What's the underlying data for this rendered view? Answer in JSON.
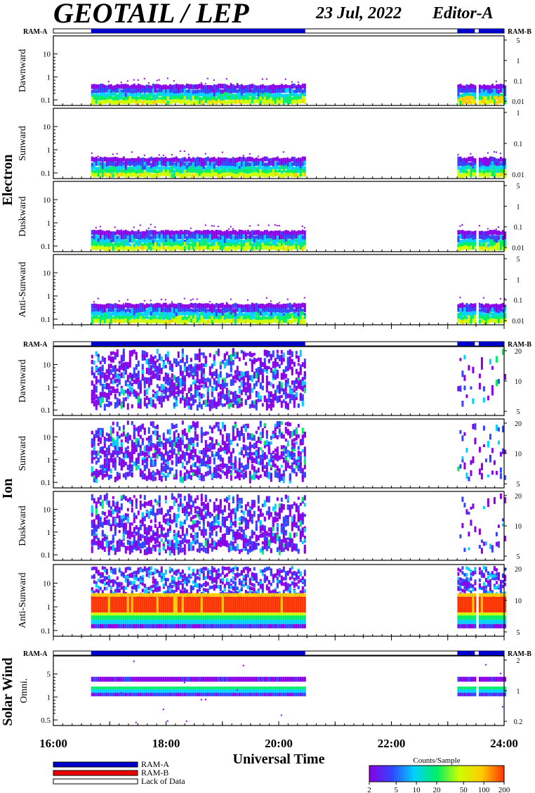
{
  "header": {
    "title": "GEOTAIL / LEP",
    "date": "23 Jul, 2022",
    "editor": "Editor-A"
  },
  "chart_data": {
    "type": "heatmap",
    "xlabel": "Universal Time",
    "x_ticks": [
      "16:00",
      "18:00",
      "20:00",
      "22:00",
      "24:00"
    ],
    "x_range_hours": [
      16,
      24
    ],
    "data_intervals_hours": [
      [
        16.67,
        20.47
      ],
      [
        23.17,
        23.48
      ],
      [
        23.55,
        24.0
      ]
    ],
    "lack_of_data_hours": [
      [
        16.0,
        16.67
      ],
      [
        20.47,
        23.17
      ],
      [
        23.48,
        23.55
      ]
    ],
    "groups": [
      {
        "name": "Electron",
        "bar_left": "RAM-A",
        "bar_right": "RAM-B",
        "panels": [
          {
            "name": "Dawnward",
            "left_ticks": [
              "10",
              "1",
              "0.1"
            ],
            "right_ticks": [
              "5",
              "1",
              "0.1",
              "0.01"
            ]
          },
          {
            "name": "Sunward",
            "left_ticks": [
              "10",
              "1",
              "0.1"
            ],
            "right_ticks": [
              "1",
              "0.1",
              "0.01"
            ]
          },
          {
            "name": "Duskward",
            "left_ticks": [
              "10",
              "1",
              "0.1"
            ],
            "right_ticks": [
              "5",
              "1",
              "0.1",
              "0.01"
            ]
          },
          {
            "name": "Anti-Sunward",
            "left_ticks": [
              "10",
              "1",
              "0.1"
            ],
            "right_ticks": [
              "5",
              "1",
              "0.1",
              "0.01"
            ]
          }
        ]
      },
      {
        "name": "Ion",
        "bar_left": "RAM-A",
        "bar_right": "RAM-B",
        "panels": [
          {
            "name": "Dawnward",
            "left_ticks": [
              "10",
              "1",
              "0.1"
            ],
            "right_ticks": [
              "20",
              "10",
              "5"
            ]
          },
          {
            "name": "Sunward",
            "left_ticks": [
              "10",
              "1",
              "0.1"
            ],
            "right_ticks": [
              "20",
              "10",
              "5"
            ]
          },
          {
            "name": "Duskward",
            "left_ticks": [
              "10",
              "1",
              "0.1"
            ],
            "right_ticks": [
              "20",
              "10",
              "5"
            ]
          },
          {
            "name": "Anti-Sunward",
            "left_ticks": [
              "10",
              "1",
              "0.1"
            ],
            "right_ticks": [
              "20",
              "10",
              "5"
            ]
          }
        ]
      },
      {
        "name": "Solar Wind",
        "bar_left": "RAM-A",
        "bar_right": "RAM-B",
        "panels": [
          {
            "name": "Omni.",
            "left_ticks": [
              "5",
              "1",
              "0.5"
            ],
            "right_ticks": [
              "2",
              "1",
              "0.2"
            ]
          }
        ]
      }
    ],
    "legend": {
      "ram_a": "RAM-A",
      "ram_b": "RAM-B",
      "lack_of_data": "Lack of Data",
      "ram_a_color": "#0000cc",
      "ram_b_color": "#ee0000"
    },
    "colorbar": {
      "title": "Counts/Sample",
      "ticks": [
        "2",
        "5",
        "10",
        "20",
        "50",
        "100",
        "200"
      ],
      "range": [
        2,
        200
      ],
      "scale": "log",
      "colors": [
        "#8a00e6",
        "#3344ff",
        "#00d2ff",
        "#00ee66",
        "#ccff00",
        "#ffcc00",
        "#ff3300"
      ]
    }
  }
}
